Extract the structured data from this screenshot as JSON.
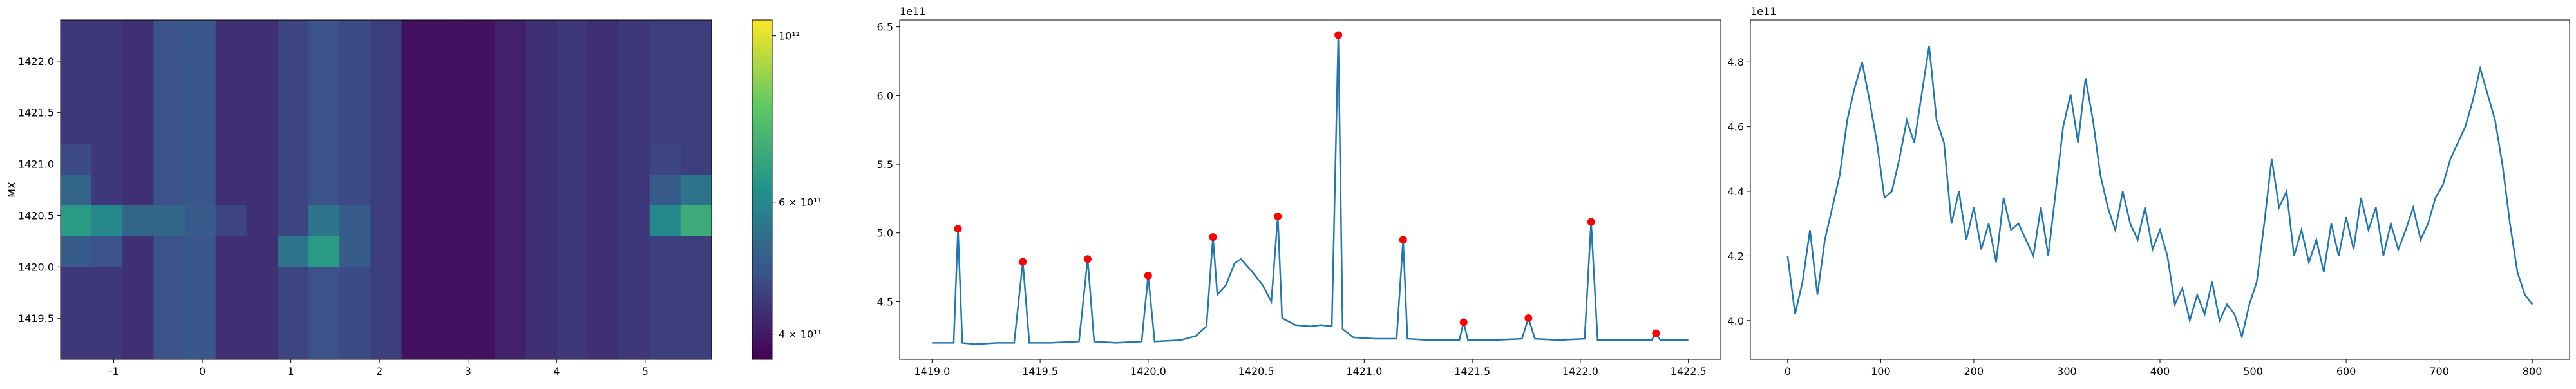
{
  "chart_data": [
    {
      "type": "heatmap",
      "ylabel": "MX",
      "xlim": [
        -1.6,
        5.75
      ],
      "ylim": [
        1419.1,
        1422.4
      ],
      "xticks": [
        -1,
        0,
        1,
        2,
        3,
        4,
        5
      ],
      "yticks": [
        1419.5,
        {
          "value": 1420,
          "label": "1420.0"
        },
        1420.5,
        {
          "value": 1421,
          "label": "1421.0"
        },
        1421.5,
        {
          "value": 1422,
          "label": "1422.0"
        }
      ],
      "x_edges": [
        -1.6,
        -1.25,
        -0.9,
        -0.55,
        -0.2,
        0.15,
        0.5,
        0.85,
        1.2,
        1.55,
        1.9,
        2.25,
        2.6,
        2.95,
        3.3,
        3.65,
        4.0,
        4.35,
        4.7,
        5.05,
        5.4,
        5.75
      ],
      "y_edges": [
        1419.1,
        1419.4,
        1419.7,
        1420.0,
        1420.3,
        1420.6,
        1420.9,
        1421.2,
        1421.5,
        1421.8,
        1422.1,
        1422.4
      ],
      "z": [
        [
          440000000000.0,
          440000000000.0,
          430000000000.0,
          480000000000.0,
          490000000000.0,
          430000000000.0,
          430000000000.0,
          460000000000.0,
          480000000000.0,
          470000000000.0,
          450000000000.0,
          390000000000.0,
          390000000000.0,
          390000000000.0,
          410000000000.0,
          430000000000.0,
          440000000000.0,
          430000000000.0,
          440000000000.0,
          450000000000.0,
          450000000000.0
        ],
        [
          440000000000.0,
          440000000000.0,
          430000000000.0,
          480000000000.0,
          490000000000.0,
          430000000000.0,
          430000000000.0,
          460000000000.0,
          480000000000.0,
          470000000000.0,
          450000000000.0,
          390000000000.0,
          390000000000.0,
          390000000000.0,
          410000000000.0,
          430000000000.0,
          440000000000.0,
          430000000000.0,
          440000000000.0,
          450000000000.0,
          450000000000.0
        ],
        [
          440000000000.0,
          440000000000.0,
          430000000000.0,
          480000000000.0,
          490000000000.0,
          430000000000.0,
          430000000000.0,
          460000000000.0,
          480000000000.0,
          470000000000.0,
          450000000000.0,
          390000000000.0,
          390000000000.0,
          390000000000.0,
          410000000000.0,
          430000000000.0,
          440000000000.0,
          430000000000.0,
          440000000000.0,
          450000000000.0,
          450000000000.0
        ],
        [
          500000000000.0,
          480000000000.0,
          430000000000.0,
          480000000000.0,
          490000000000.0,
          430000000000.0,
          430000000000.0,
          550000000000.0,
          650000000000.0,
          500000000000.0,
          450000000000.0,
          390000000000.0,
          390000000000.0,
          390000000000.0,
          410000000000.0,
          430000000000.0,
          440000000000.0,
          430000000000.0,
          440000000000.0,
          450000000000.0,
          450000000000.0
        ],
        [
          650000000000.0,
          600000000000.0,
          520000000000.0,
          520000000000.0,
          500000000000.0,
          460000000000.0,
          430000000000.0,
          460000000000.0,
          550000000000.0,
          500000000000.0,
          450000000000.0,
          390000000000.0,
          390000000000.0,
          390000000000.0,
          410000000000.0,
          430000000000.0,
          440000000000.0,
          430000000000.0,
          440000000000.0,
          600000000000.0,
          700000000000.0
        ],
        [
          520000000000.0,
          440000000000.0,
          430000000000.0,
          480000000000.0,
          490000000000.0,
          430000000000.0,
          430000000000.0,
          460000000000.0,
          480000000000.0,
          470000000000.0,
          450000000000.0,
          390000000000.0,
          390000000000.0,
          390000000000.0,
          410000000000.0,
          430000000000.0,
          440000000000.0,
          430000000000.0,
          440000000000.0,
          500000000000.0,
          550000000000.0
        ],
        [
          470000000000.0,
          440000000000.0,
          430000000000.0,
          480000000000.0,
          490000000000.0,
          430000000000.0,
          430000000000.0,
          460000000000.0,
          480000000000.0,
          470000000000.0,
          450000000000.0,
          390000000000.0,
          390000000000.0,
          390000000000.0,
          410000000000.0,
          430000000000.0,
          440000000000.0,
          430000000000.0,
          440000000000.0,
          460000000000.0,
          450000000000.0
        ],
        [
          440000000000.0,
          440000000000.0,
          430000000000.0,
          480000000000.0,
          490000000000.0,
          430000000000.0,
          430000000000.0,
          460000000000.0,
          480000000000.0,
          470000000000.0,
          450000000000.0,
          390000000000.0,
          390000000000.0,
          390000000000.0,
          410000000000.0,
          430000000000.0,
          440000000000.0,
          430000000000.0,
          440000000000.0,
          450000000000.0,
          450000000000.0
        ],
        [
          440000000000.0,
          440000000000.0,
          430000000000.0,
          480000000000.0,
          490000000000.0,
          430000000000.0,
          430000000000.0,
          460000000000.0,
          480000000000.0,
          470000000000.0,
          450000000000.0,
          390000000000.0,
          390000000000.0,
          390000000000.0,
          410000000000.0,
          430000000000.0,
          440000000000.0,
          430000000000.0,
          440000000000.0,
          450000000000.0,
          450000000000.0
        ],
        [
          440000000000.0,
          440000000000.0,
          430000000000.0,
          480000000000.0,
          490000000000.0,
          430000000000.0,
          430000000000.0,
          460000000000.0,
          480000000000.0,
          470000000000.0,
          450000000000.0,
          390000000000.0,
          390000000000.0,
          390000000000.0,
          410000000000.0,
          430000000000.0,
          440000000000.0,
          430000000000.0,
          440000000000.0,
          450000000000.0,
          450000000000.0
        ],
        [
          440000000000.0,
          440000000000.0,
          430000000000.0,
          480000000000.0,
          490000000000.0,
          430000000000.0,
          430000000000.0,
          460000000000.0,
          480000000000.0,
          470000000000.0,
          450000000000.0,
          390000000000.0,
          390000000000.0,
          390000000000.0,
          410000000000.0,
          430000000000.0,
          440000000000.0,
          430000000000.0,
          440000000000.0,
          450000000000.0,
          450000000000.0
        ]
      ],
      "colormap": [
        "#440154",
        "#3b528b",
        "#21918c",
        "#5ec962",
        "#fde725"
      ],
      "color_scale": "log",
      "clim": [
        370000000000.0,
        1050000000000.0
      ],
      "cticks": [
        {
          "value": 400000000000.0,
          "label": "4 × 10¹¹"
        },
        {
          "value": 600000000000.0,
          "label": "6 × 10¹¹"
        },
        {
          "value": 1000000000000.0,
          "label": "10¹²"
        }
      ]
    },
    {
      "type": "line",
      "y_offset_label": "1e11",
      "xlim": [
        1418.85,
        1422.65
      ],
      "ylim": [
        4.08,
        6.55
      ],
      "xticks": [
        {
          "value": 1419,
          "label": "1419.0"
        },
        1419.5,
        {
          "value": 1420,
          "label": "1420.0"
        },
        1420.5,
        {
          "value": 1421,
          "label": "1421.0"
        },
        1421.5,
        {
          "value": 1422,
          "label": "1422.0"
        },
        1422.5
      ],
      "yticks": [
        4.5,
        {
          "value": 5,
          "label": "5.0"
        },
        5.5,
        {
          "value": 6,
          "label": "6.0"
        },
        6.5
      ],
      "series": [
        {
          "color": "#1f77b4",
          "x": [
            1419.0,
            1419.08,
            1419.1,
            1419.12,
            1419.14,
            1419.2,
            1419.3,
            1419.38,
            1419.42,
            1419.45,
            1419.55,
            1419.68,
            1419.72,
            1419.75,
            1419.85,
            1419.97,
            1420.0,
            1420.03,
            1420.15,
            1420.22,
            1420.27,
            1420.3,
            1420.32,
            1420.36,
            1420.4,
            1420.43,
            1420.48,
            1420.53,
            1420.57,
            1420.6,
            1420.62,
            1420.68,
            1420.75,
            1420.8,
            1420.85,
            1420.88,
            1420.9,
            1420.95,
            1421.05,
            1421.15,
            1421.18,
            1421.2,
            1421.3,
            1421.44,
            1421.46,
            1421.48,
            1421.6,
            1421.73,
            1421.76,
            1421.79,
            1421.9,
            1422.02,
            1422.05,
            1422.08,
            1422.2,
            1422.33,
            1422.35,
            1422.37,
            1422.5
          ],
          "values": [
            4.2,
            4.2,
            4.2,
            5.03,
            4.2,
            4.19,
            4.2,
            4.2,
            4.79,
            4.2,
            4.2,
            4.21,
            4.81,
            4.21,
            4.2,
            4.21,
            4.69,
            4.21,
            4.22,
            4.25,
            4.32,
            4.97,
            4.55,
            4.62,
            4.78,
            4.81,
            4.72,
            4.62,
            4.5,
            5.12,
            4.38,
            4.33,
            4.32,
            4.33,
            4.32,
            6.44,
            4.3,
            4.24,
            4.23,
            4.23,
            4.95,
            4.23,
            4.22,
            4.22,
            4.35,
            4.22,
            4.22,
            4.23,
            4.38,
            4.23,
            4.22,
            4.23,
            5.08,
            4.22,
            4.22,
            4.22,
            4.27,
            4.22,
            4.22
          ]
        }
      ],
      "markers": {
        "color": "#ff0000",
        "x": [
          1419.12,
          1419.42,
          1419.72,
          1420.0,
          1420.3,
          1420.6,
          1420.88,
          1421.18,
          1421.46,
          1421.76,
          1422.05,
          1422.35
        ],
        "values": [
          5.03,
          4.79,
          4.81,
          4.69,
          4.97,
          5.12,
          6.44,
          4.95,
          4.35,
          4.38,
          5.08,
          4.27
        ]
      }
    },
    {
      "type": "line",
      "y_offset_label": "1e11",
      "xlim": [
        -40,
        840
      ],
      "ylim": [
        3.88,
        4.93
      ],
      "xticks": [
        0,
        100,
        200,
        300,
        400,
        500,
        600,
        700,
        800
      ],
      "yticks": [
        {
          "value": 4,
          "label": "4.0"
        },
        4.2,
        4.4,
        4.6,
        4.8
      ],
      "series": [
        {
          "color": "#1f77b4",
          "x": [
            0,
            8,
            16,
            24,
            32,
            40,
            48,
            56,
            64,
            72,
            80,
            88,
            96,
            104,
            112,
            120,
            128,
            136,
            144,
            152,
            160,
            168,
            176,
            184,
            192,
            200,
            208,
            216,
            224,
            232,
            240,
            248,
            256,
            264,
            272,
            280,
            288,
            296,
            304,
            312,
            320,
            328,
            336,
            344,
            352,
            360,
            368,
            376,
            384,
            392,
            400,
            408,
            416,
            424,
            432,
            440,
            448,
            456,
            464,
            472,
            480,
            488,
            496,
            504,
            512,
            520,
            528,
            536,
            544,
            552,
            560,
            568,
            576,
            584,
            592,
            600,
            608,
            616,
            624,
            632,
            640,
            648,
            656,
            664,
            672,
            680,
            688,
            696,
            704,
            712,
            720,
            728,
            736,
            744,
            752,
            760,
            768,
            776,
            784,
            792,
            800
          ],
          "values": [
            4.2,
            4.02,
            4.12,
            4.28,
            4.08,
            4.25,
            4.35,
            4.45,
            4.62,
            4.72,
            4.8,
            4.68,
            4.55,
            4.38,
            4.4,
            4.5,
            4.62,
            4.55,
            4.7,
            4.85,
            4.62,
            4.55,
            4.3,
            4.4,
            4.25,
            4.35,
            4.22,
            4.3,
            4.18,
            4.38,
            4.28,
            4.3,
            4.25,
            4.2,
            4.35,
            4.2,
            4.4,
            4.6,
            4.7,
            4.55,
            4.75,
            4.62,
            4.45,
            4.35,
            4.28,
            4.4,
            4.3,
            4.25,
            4.35,
            4.22,
            4.28,
            4.2,
            4.05,
            4.1,
            4.0,
            4.08,
            4.02,
            4.12,
            4.0,
            4.05,
            4.02,
            3.95,
            4.05,
            4.12,
            4.3,
            4.5,
            4.35,
            4.4,
            4.2,
            4.28,
            4.18,
            4.25,
            4.15,
            4.3,
            4.2,
            4.32,
            4.22,
            4.38,
            4.28,
            4.35,
            4.2,
            4.3,
            4.22,
            4.28,
            4.35,
            4.25,
            4.3,
            4.38,
            4.42,
            4.5,
            4.55,
            4.6,
            4.68,
            4.78,
            4.7,
            4.62,
            4.48,
            4.3,
            4.15,
            4.08,
            4.05
          ]
        }
      ]
    }
  ]
}
